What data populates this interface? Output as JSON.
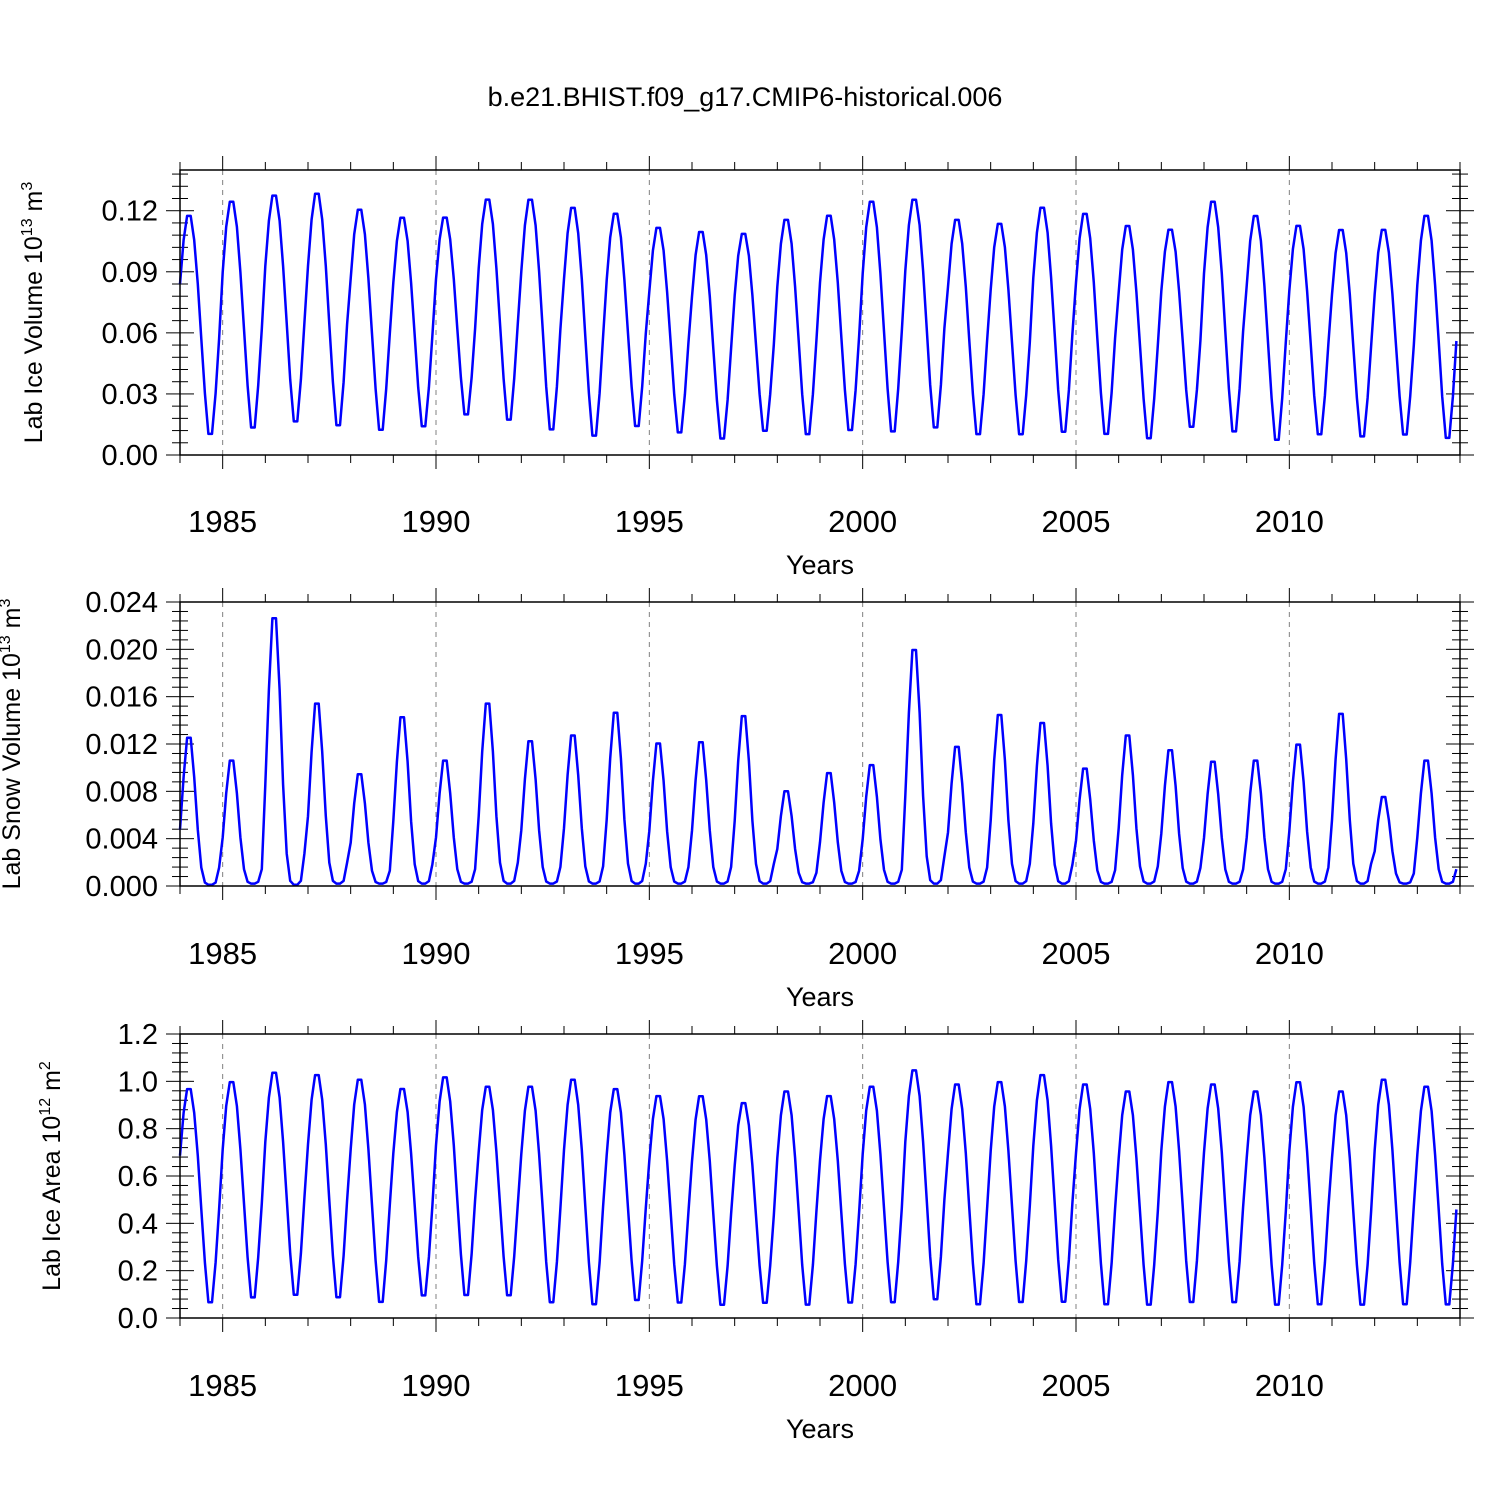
{
  "title": "b.e21.BHIST.f09_g17.CMIP6-historical.006",
  "panels": [
    {
      "ylabel": "Lab Ice Volume 10",
      "ylabel_exp": "13",
      "ylabel_unit": " m",
      "ylabel_unit_exp": "3",
      "xlabel": "Years"
    },
    {
      "ylabel": "Lab Snow Volume 10",
      "ylabel_exp": "13",
      "ylabel_unit": " m",
      "ylabel_unit_exp": "3",
      "xlabel": "Years"
    },
    {
      "ylabel": "Lab Ice Area 10",
      "ylabel_exp": "12",
      "ylabel_unit": " m",
      "ylabel_unit_exp": "2",
      "xlabel": "Years"
    }
  ],
  "colors": {
    "series": "#0000ff",
    "axes": "#000000",
    "grid": "#808080"
  },
  "chart_data": [
    {
      "type": "line",
      "title": "",
      "xlabel": "Years",
      "ylabel": "Lab Ice Volume 10^13 m^3",
      "xlim": [
        1984,
        2014
      ],
      "ylim": [
        0,
        0.14
      ],
      "yticks": [
        "0.00",
        "0.03",
        "0.06",
        "0.09",
        "0.12"
      ],
      "ytick_values": [
        0,
        0.03,
        0.06,
        0.09,
        0.12
      ],
      "xticks": [
        "1985",
        "1990",
        "1995",
        "2000",
        "2005",
        "2010"
      ],
      "xtick_values": [
        1985,
        1990,
        1995,
        2000,
        2005,
        2010
      ],
      "grid": "vertical dashed at 5-year ticks",
      "series": [
        {
          "x_start": "1984-01",
          "step": "monthly",
          "annual_max": [
            0.119,
            0.126,
            0.129,
            0.13,
            0.122,
            0.118,
            0.118,
            0.127,
            0.127,
            0.123,
            0.12,
            0.113,
            0.111,
            0.11,
            0.117,
            0.119,
            0.126,
            0.127,
            0.117,
            0.115,
            0.123,
            0.12,
            0.114,
            0.112,
            0.126,
            0.119,
            0.114,
            0.112,
            0.112,
            0.119
          ],
          "annual_min": [
            0.006,
            0.009,
            0.012,
            0.01,
            0.008,
            0.01,
            0.016,
            0.013,
            0.008,
            0.005,
            0.01,
            0.007,
            0.004,
            0.008,
            0.006,
            0.008,
            0.007,
            0.009,
            0.006,
            0.006,
            0.007,
            0.006,
            0.004,
            0.01,
            0.007,
            0.003,
            0.006,
            0.005,
            0.006,
            0.004
          ]
        }
      ]
    },
    {
      "type": "line",
      "title": "",
      "xlabel": "Years",
      "ylabel": "Lab Snow Volume 10^13 m^3",
      "xlim": [
        1984,
        2014
      ],
      "ylim": [
        0,
        0.024
      ],
      "yticks": [
        "0.000",
        "0.004",
        "0.008",
        "0.012",
        "0.016",
        "0.020",
        "0.024"
      ],
      "ytick_values": [
        0,
        0.004,
        0.008,
        0.012,
        0.016,
        0.02,
        0.024
      ],
      "xticks": [
        "1985",
        "1990",
        "1995",
        "2000",
        "2005",
        "2010"
      ],
      "xtick_values": [
        1985,
        1990,
        1995,
        2000,
        2005,
        2010
      ],
      "grid": "vertical dashed at 5-year ticks",
      "series": [
        {
          "x_start": "1984-01",
          "step": "monthly",
          "annual_max": [
            0.013,
            0.011,
            0.0235,
            0.016,
            0.0098,
            0.0148,
            0.011,
            0.016,
            0.0127,
            0.0132,
            0.0152,
            0.0125,
            0.0126,
            0.0149,
            0.0083,
            0.0099,
            0.0106,
            0.0207,
            0.0122,
            0.015,
            0.0143,
            0.0103,
            0.0132,
            0.0119,
            0.0109,
            0.011,
            0.0124,
            0.0151,
            0.0078,
            0.011
          ],
          "annual_min": [
            0.0001,
            0.0002,
            0.0001,
            0.0002,
            0.0002,
            0.0002,
            0.0002,
            0.0002,
            0.0002,
            0.0002,
            0.0002,
            0.0002,
            0.0002,
            0.0002,
            0.0002,
            0.0002,
            0.0002,
            0.0002,
            0.0002,
            0.0002,
            0.0002,
            0.0002,
            0.0002,
            0.0002,
            0.0002,
            0.0002,
            0.0002,
            0.0002,
            0.0002,
            0.0002
          ]
        }
      ]
    },
    {
      "type": "line",
      "title": "",
      "xlabel": "Years",
      "ylabel": "Lab Ice Area 10^12 m^2",
      "xlim": [
        1984,
        2014
      ],
      "ylim": [
        0,
        1.2
      ],
      "yticks": [
        "0.0",
        "0.2",
        "0.4",
        "0.6",
        "0.8",
        "1.0",
        "1.2"
      ],
      "ytick_values": [
        0,
        0.2,
        0.4,
        0.6,
        0.8,
        1.0,
        1.2
      ],
      "xticks": [
        "1985",
        "1990",
        "1995",
        "2000",
        "2005",
        "2010"
      ],
      "xtick_values": [
        1985,
        1990,
        1995,
        2000,
        2005,
        2010
      ],
      "grid": "vertical dashed at 5-year ticks",
      "series": [
        {
          "x_start": "1984-01",
          "step": "monthly",
          "annual_max": [
            0.98,
            1.01,
            1.05,
            1.04,
            1.02,
            0.98,
            1.03,
            0.99,
            0.99,
            1.02,
            0.98,
            0.95,
            0.95,
            0.92,
            0.97,
            0.95,
            0.99,
            1.06,
            1.0,
            1.01,
            1.04,
            1.0,
            0.97,
            1.01,
            1.0,
            0.97,
            1.01,
            0.97,
            1.02,
            0.99
          ],
          "annual_min": [
            0.03,
            0.05,
            0.06,
            0.05,
            0.03,
            0.06,
            0.06,
            0.06,
            0.03,
            0.02,
            0.04,
            0.03,
            0.02,
            0.03,
            0.02,
            0.03,
            0.03,
            0.04,
            0.02,
            0.03,
            0.03,
            0.02,
            0.02,
            0.03,
            0.03,
            0.02,
            0.02,
            0.02,
            0.02,
            0.02
          ]
        }
      ]
    }
  ]
}
